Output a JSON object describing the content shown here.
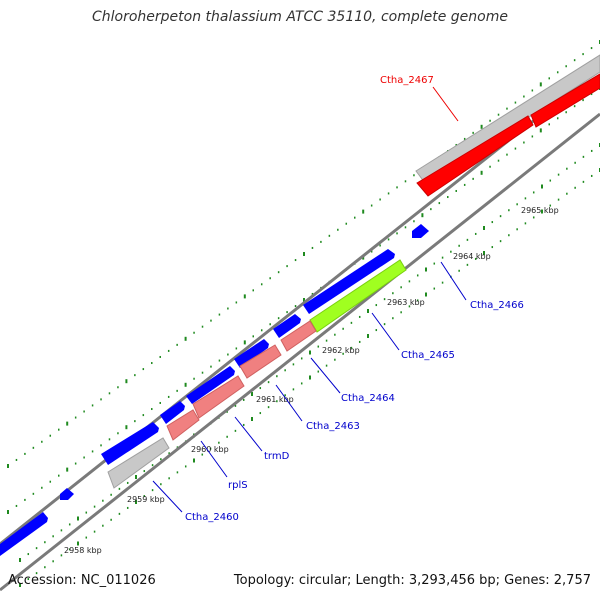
{
  "title": "Chloroherpeton thalassium ATCC 35110, complete genome",
  "accession": "Accession: NC_011026",
  "summary": "Topology: circular; Length: 3,293,456 bp; Genes: 2,757",
  "colors": {
    "backbone": "#808080",
    "tick": "#1f8a1f",
    "gene_forward": "#0000ff",
    "trna": "#cccccc",
    "rrna_red": "#ff0000",
    "cds_pink": "#f08080",
    "cds_green": "#a0ff20",
    "label_blue": "#0000cc",
    "label_red": "#ee0000"
  },
  "scale_labels": [
    "2958 kbp",
    "2959 kbp",
    "2960 kbp",
    "2961 kbp",
    "2962 kbp",
    "2963 kbp",
    "2964 kbp",
    "2965 kbp"
  ],
  "gene_labels": [
    {
      "name": "Ctha_2467",
      "color": "red"
    },
    {
      "name": "Ctha_2466",
      "color": "blue"
    },
    {
      "name": "Ctha_2465",
      "color": "blue"
    },
    {
      "name": "Ctha_2464",
      "color": "blue"
    },
    {
      "name": "Ctha_2463",
      "color": "blue"
    },
    {
      "name": "trmD",
      "color": "blue"
    },
    {
      "name": "rplS",
      "color": "blue"
    },
    {
      "name": "Ctha_2460",
      "color": "blue"
    }
  ]
}
